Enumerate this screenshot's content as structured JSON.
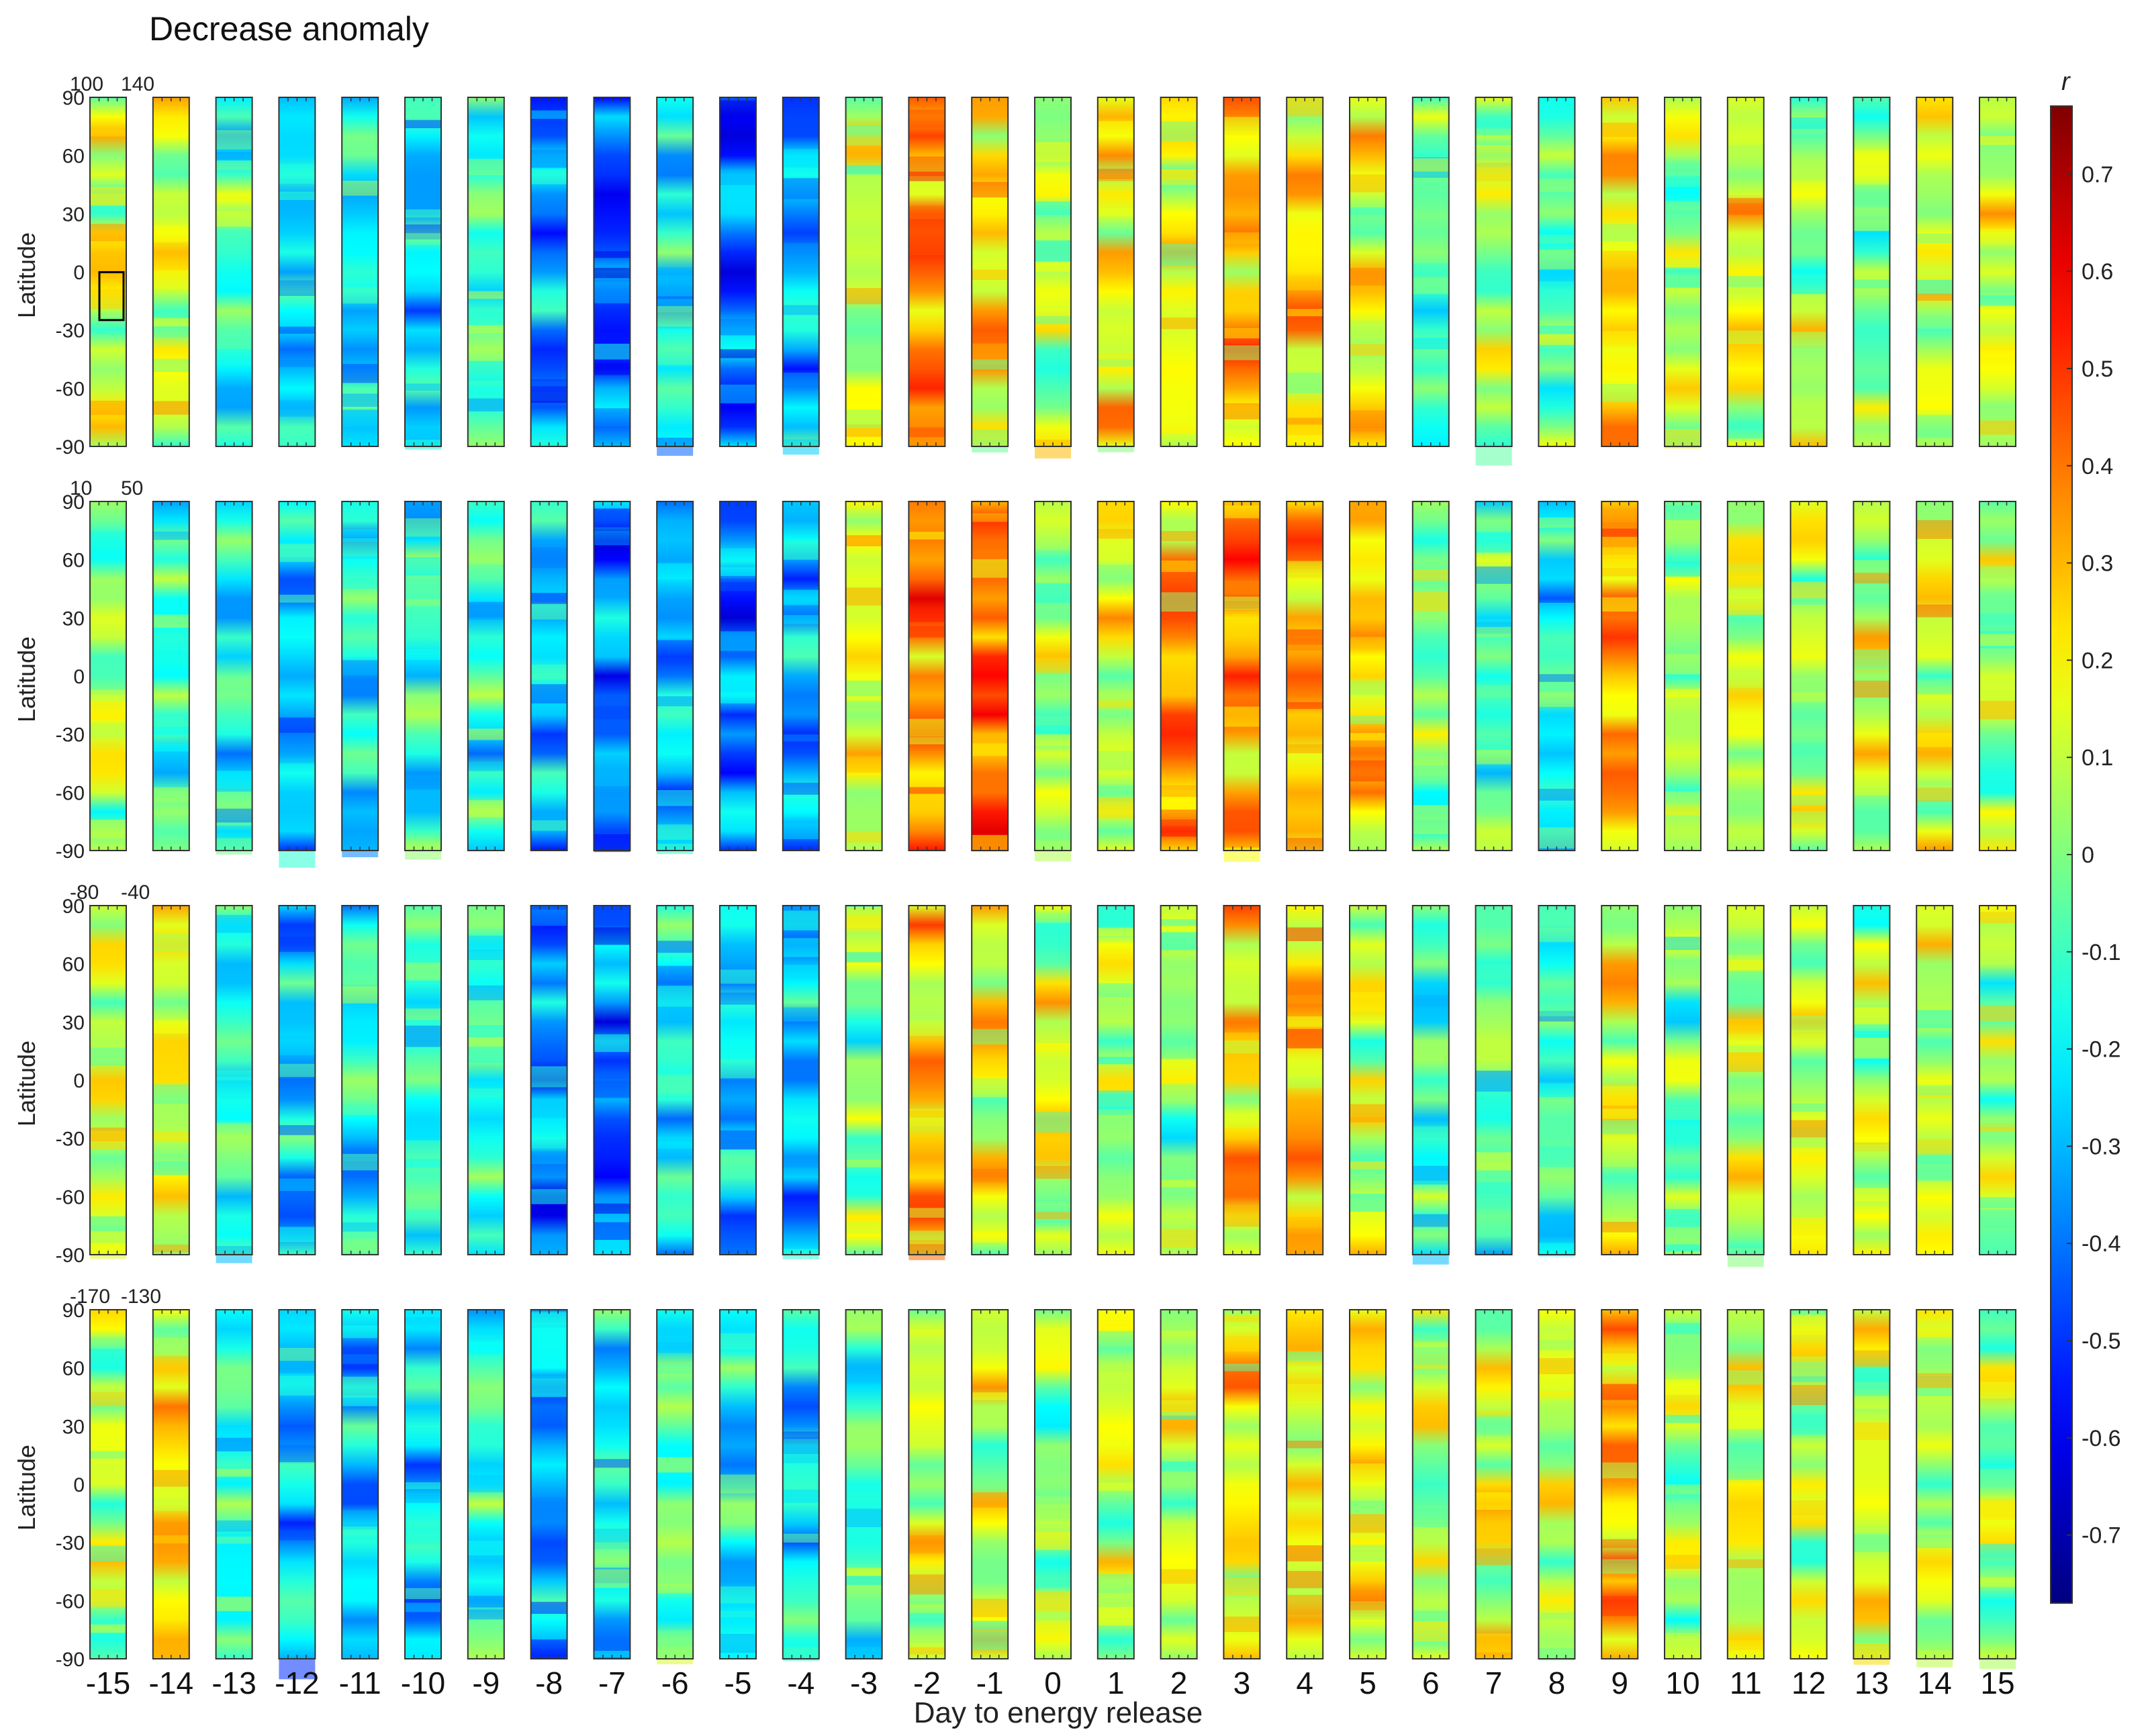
{
  "chart_data": {
    "type": "heatmap",
    "title": "Decrease anomaly",
    "xlabel": "Day to energy release",
    "ylabel": "Latitude",
    "days": [
      -15,
      -14,
      -13,
      -12,
      -11,
      -10,
      -9,
      -8,
      -7,
      -6,
      -5,
      -4,
      -3,
      -2,
      -1,
      0,
      1,
      2,
      3,
      4,
      5,
      6,
      7,
      8,
      9,
      10,
      11,
      12,
      13,
      14,
      15
    ],
    "day_labels": [
      "-15",
      "-14",
      "-13",
      "-12",
      "-11",
      "-10",
      "-9",
      "-8",
      "-7",
      "-6",
      "-5",
      "-4",
      "-3",
      "-2",
      "-1",
      "0",
      "1",
      "2",
      "3",
      "4",
      "5",
      "6",
      "7",
      "8",
      "9",
      "10",
      "11",
      "12",
      "13",
      "14",
      "15"
    ],
    "latitude_ticks": [
      90,
      60,
      30,
      0,
      -30,
      -60,
      -90
    ],
    "latitude_tick_labels": [
      "90",
      "60",
      "30",
      "0",
      "-30",
      "-60",
      "-90"
    ],
    "ylim": [
      -90,
      90
    ],
    "longitude_bands": [
      {
        "label_left": "100",
        "label_right": "140",
        "lon_range": [
          100,
          140
        ]
      },
      {
        "label_left": "10",
        "label_right": "50",
        "lon_range": [
          10,
          50
        ]
      },
      {
        "label_left": "-80",
        "label_right": "-40",
        "lon_range": [
          -80,
          -40
        ]
      },
      {
        "label_left": "-170",
        "label_right": "-130",
        "lon_range": [
          -170,
          -130
        ]
      }
    ],
    "colorbar": {
      "label": "r",
      "range": [
        -0.77,
        0.77
      ],
      "ticks": [
        0.7,
        0.6,
        0.5,
        0.4,
        0.3,
        0.2,
        0.1,
        0,
        -0.1,
        -0.2,
        -0.3,
        -0.4,
        -0.5,
        -0.6,
        -0.7
      ],
      "tick_labels": [
        "0.7",
        "0.6",
        "0.5",
        "0.4",
        "0.3",
        "0.2",
        "0.1",
        "0",
        "-0.1",
        "-0.2",
        "-0.3",
        "-0.4",
        "-0.5",
        "-0.6",
        "-0.7"
      ],
      "colormap": "jet"
    },
    "mean_r_by_band_and_day": [
      [
        0.1,
        0.12,
        -0.1,
        -0.2,
        -0.2,
        -0.25,
        -0.12,
        -0.35,
        -0.42,
        -0.2,
        -0.38,
        -0.3,
        0.1,
        0.35,
        0.22,
        0.05,
        0.18,
        0.12,
        0.28,
        0.2,
        0.15,
        -0.05,
        0.05,
        -0.05,
        0.25,
        0.05,
        0.15,
        0.05,
        0.0,
        0.1,
        0.12
      ],
      [
        0.05,
        -0.1,
        -0.2,
        -0.25,
        -0.2,
        -0.15,
        -0.15,
        -0.3,
        -0.38,
        -0.3,
        -0.4,
        -0.32,
        0.15,
        0.4,
        0.42,
        0.05,
        0.12,
        0.3,
        0.35,
        0.32,
        0.25,
        0.0,
        -0.1,
        -0.2,
        0.3,
        0.05,
        0.1,
        0.05,
        0.1,
        0.15,
        0.05
      ],
      [
        0.1,
        0.15,
        -0.15,
        -0.25,
        -0.2,
        -0.15,
        -0.1,
        -0.4,
        -0.38,
        -0.2,
        -0.3,
        -0.3,
        0.0,
        0.25,
        0.15,
        0.1,
        0.05,
        0.0,
        0.25,
        0.25,
        0.1,
        -0.1,
        -0.1,
        -0.1,
        0.15,
        -0.05,
        0.1,
        0.12,
        0.05,
        0.1,
        0.02
      ],
      [
        0.08,
        0.2,
        -0.15,
        -0.3,
        -0.25,
        -0.25,
        -0.15,
        -0.32,
        -0.2,
        -0.05,
        -0.2,
        -0.2,
        -0.1,
        0.1,
        0.1,
        0.0,
        0.1,
        0.1,
        0.2,
        0.15,
        0.18,
        0.05,
        0.15,
        0.1,
        0.3,
        0.05,
        0.1,
        0.1,
        0.1,
        0.05,
        0.05
      ]
    ],
    "highlight": {
      "band": "100-140",
      "day": -15,
      "lat_range": [
        -20,
        -5
      ]
    }
  }
}
